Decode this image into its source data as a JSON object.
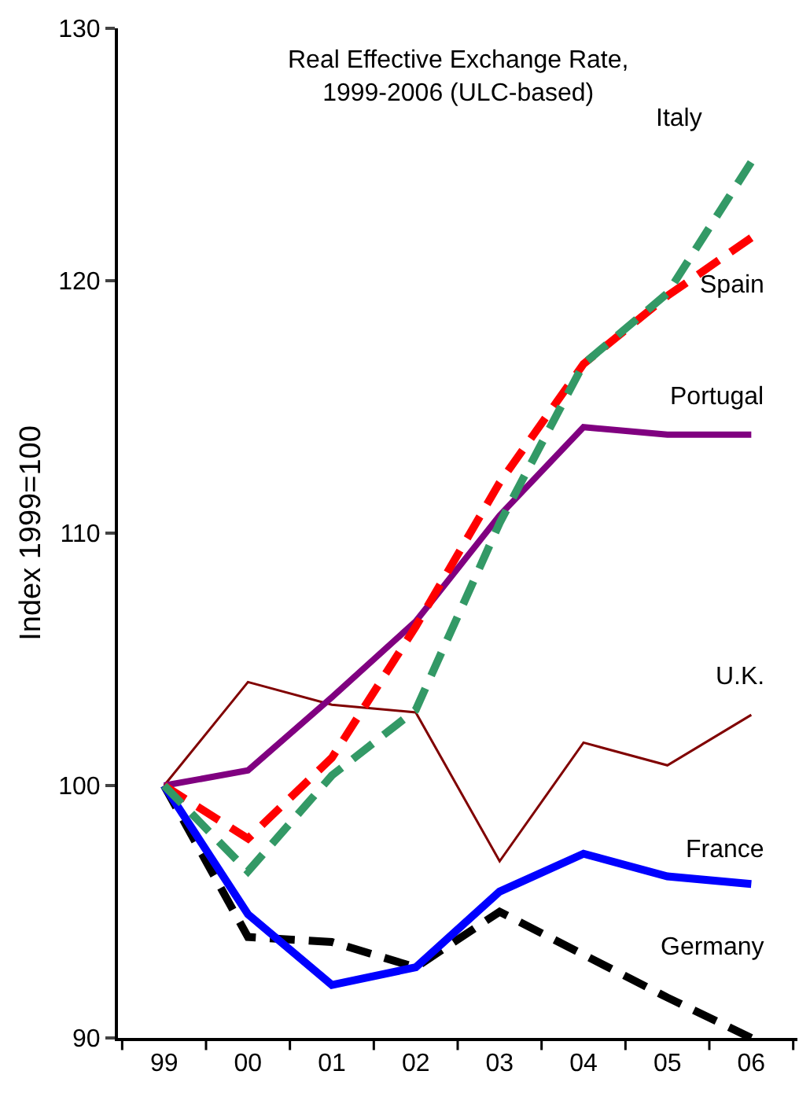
{
  "chart_data": {
    "type": "line",
    "title": "Real Effective Exchange Rate,\n1999-2006 (ULC-based)",
    "ylabel": "Index 1999=100",
    "categories": [
      "99",
      "00",
      "01",
      "02",
      "03",
      "04",
      "05",
      "06"
    ],
    "series": [
      {
        "name": "Italy",
        "color": "#339966",
        "line_style": "dashed",
        "values": [
          100,
          96.6,
          100.4,
          103.0,
          110.4,
          116.7,
          119.5,
          124.7
        ]
      },
      {
        "name": "Spain",
        "color": "#ff0000",
        "line_style": "dashed",
        "values": [
          100,
          97.9,
          101.1,
          106.3,
          112.0,
          116.7,
          119.4,
          121.7
        ]
      },
      {
        "name": "Portugal",
        "color": "#800080",
        "line_style": "solid",
        "values": [
          100,
          100.6,
          103.5,
          106.5,
          110.7,
          114.2,
          113.9,
          113.9
        ]
      },
      {
        "name": "U.K.",
        "color": "#800000",
        "line_style": "solid",
        "values": [
          100,
          104.1,
          103.2,
          102.9,
          97.0,
          101.7,
          100.8,
          102.8
        ]
      },
      {
        "name": "France",
        "color": "#0000ff",
        "line_style": "solid",
        "values": [
          100,
          94.9,
          92.1,
          92.8,
          95.8,
          97.3,
          96.4,
          96.1
        ]
      },
      {
        "name": "Germany",
        "color": "#000000",
        "line_style": "dashed",
        "values": [
          100,
          94.0,
          93.8,
          92.8,
          95.0,
          93.3,
          91.6,
          90.0
        ]
      }
    ],
    "ylim": [
      90,
      130
    ],
    "yticks": [
      90,
      100,
      110,
      120,
      130
    ],
    "grid": false,
    "legend": false,
    "marker": "none"
  }
}
